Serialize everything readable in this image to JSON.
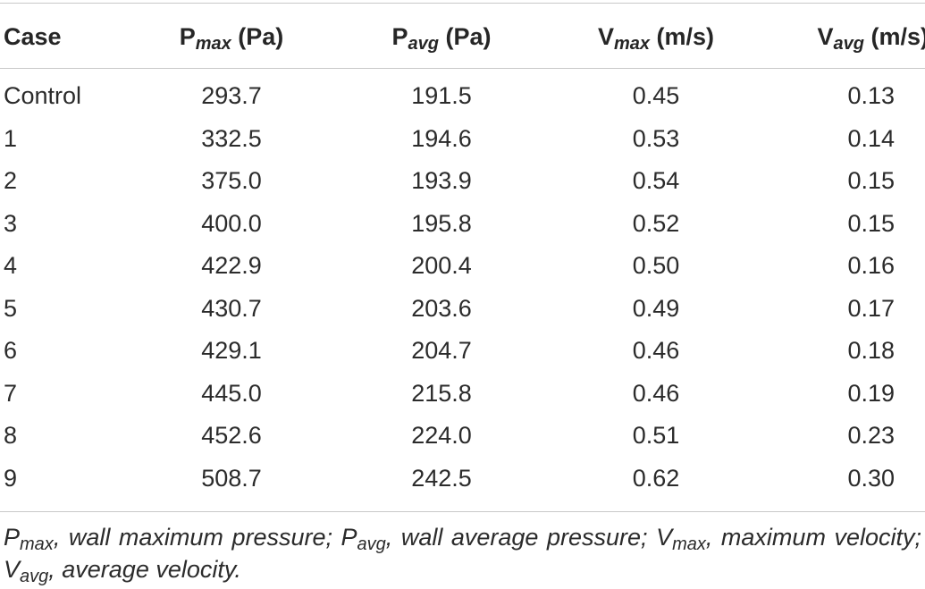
{
  "table": {
    "headers": [
      {
        "main": "Case",
        "sub": "",
        "unit": ""
      },
      {
        "main": "P",
        "sub": "max",
        "unit": " (Pa)"
      },
      {
        "main": "P",
        "sub": "avg",
        "unit": " (Pa)"
      },
      {
        "main": "V",
        "sub": "max",
        "unit": " (m/s)"
      },
      {
        "main": "V",
        "sub": "avg",
        "unit": " (m/s)"
      }
    ],
    "rows": [
      [
        "Control",
        "293.7",
        "191.5",
        "0.45",
        "0.13"
      ],
      [
        "1",
        "332.5",
        "194.6",
        "0.53",
        "0.14"
      ],
      [
        "2",
        "375.0",
        "193.9",
        "0.54",
        "0.15"
      ],
      [
        "3",
        "400.0",
        "195.8",
        "0.52",
        "0.15"
      ],
      [
        "4",
        "422.9",
        "200.4",
        "0.50",
        "0.16"
      ],
      [
        "5",
        "430.7",
        "203.6",
        "0.49",
        "0.17"
      ],
      [
        "6",
        "429.1",
        "204.7",
        "0.46",
        "0.18"
      ],
      [
        "7",
        "445.0",
        "215.8",
        "0.46",
        "0.19"
      ],
      [
        "8",
        "452.6",
        "224.0",
        "0.51",
        "0.23"
      ],
      [
        "9",
        "508.7",
        "242.5",
        "0.62",
        "0.30"
      ]
    ]
  },
  "footnote": [
    {
      "main": "P",
      "sub": "max",
      "desc": ", wall maximum pressure; "
    },
    {
      "main": "P",
      "sub": "avg",
      "desc": ", wall average pressure; "
    },
    {
      "main": "V",
      "sub": "max",
      "desc": ", maximum velocity; "
    },
    {
      "main": "V",
      "sub": "avg",
      "desc": ", average velocity."
    }
  ]
}
